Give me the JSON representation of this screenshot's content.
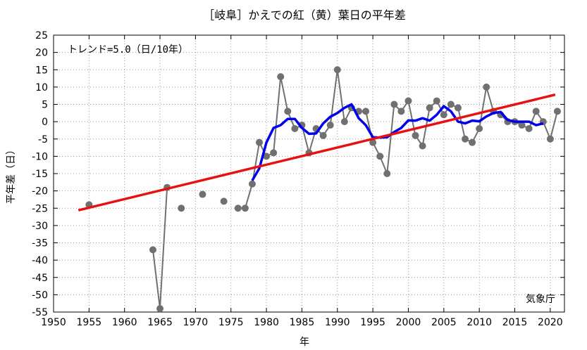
{
  "chart_data": {
    "type": "line",
    "title": "［岐阜］かえでの紅（黄）葉日の平年差",
    "xlabel": "年",
    "ylabel": "平年差（日）",
    "xlim": [
      1950,
      2022
    ],
    "ylim": [
      -55,
      25
    ],
    "xticks": [
      1950,
      1955,
      1960,
      1965,
      1970,
      1975,
      1980,
      1985,
      1990,
      1995,
      2000,
      2005,
      2010,
      2015,
      2020
    ],
    "yticks": [
      25,
      20,
      15,
      10,
      5,
      0,
      -5,
      -10,
      -15,
      -20,
      -25,
      -30,
      -35,
      -40,
      -45,
      -50,
      -55
    ],
    "grid": true,
    "trend_text": "トレンド=5.0（日/10年）",
    "source_text": "気象庁",
    "colors": {
      "observed": "#707070",
      "moving_average": "#0000ee",
      "trend": "#e81010"
    },
    "series": [
      {
        "kind": "observed",
        "x": [
          1955,
          1964,
          1965,
          1966,
          1968,
          1971,
          1974,
          1976,
          1977,
          1978,
          1979,
          1980,
          1981,
          1982,
          1983,
          1984,
          1985,
          1986,
          1987,
          1988,
          1989,
          1990,
          1991,
          1992,
          1993,
          1994,
          1995,
          1996,
          1997,
          1998,
          1999,
          2000,
          2001,
          2002,
          2003,
          2004,
          2005,
          2006,
          2007,
          2008,
          2009,
          2010,
          2011,
          2012,
          2013,
          2014,
          2015,
          2016,
          2017,
          2018,
          2019,
          2020,
          2021
        ],
        "y": [
          -24,
          -37,
          -54,
          -19,
          -25,
          -21,
          -23,
          -25,
          -25,
          -18,
          -6,
          -10,
          -9,
          13,
          3,
          -2,
          -1,
          -9,
          -2,
          -4,
          -1,
          15,
          0,
          4,
          3,
          3,
          -6,
          -10,
          -15,
          5,
          3,
          6,
          -4,
          -7,
          4,
          6,
          2,
          5,
          4,
          -5,
          -6,
          -2,
          10,
          3,
          2,
          0,
          0,
          -1,
          -2,
          3,
          0,
          -5,
          3
        ],
        "segments": [
          [
            1955
          ],
          [
            1964,
            1966
          ],
          [
            1968
          ],
          [
            1971
          ],
          [
            1974
          ],
          [
            1976,
            2021
          ]
        ]
      },
      {
        "kind": "moving_average",
        "x": [
          1978,
          1979,
          1980,
          1981,
          1982,
          1983,
          1984,
          1985,
          1986,
          1987,
          1988,
          1989,
          1990,
          1991,
          1992,
          1993,
          1994,
          1995,
          1996,
          1997,
          1998,
          1999,
          2000,
          2001,
          2002,
          2003,
          2004,
          2005,
          2006,
          2007,
          2008,
          2009,
          2010,
          2011,
          2012,
          2013,
          2014,
          2015,
          2016,
          2017,
          2018,
          2019
        ],
        "y": [
          -17,
          -13.5,
          -6,
          -1.8,
          -1,
          0.8,
          0.8,
          -1.8,
          -3.5,
          -3.4,
          -0.5,
          1.4,
          2.5,
          4,
          5,
          1,
          -1,
          -4.5,
          -4.6,
          -4.5,
          -3,
          -1.8,
          0.4,
          0.3,
          1,
          0.3,
          2,
          4.5,
          3,
          0,
          -0.5,
          0.3,
          0.1,
          1.5,
          2.5,
          2.8,
          0.5,
          0,
          0,
          0,
          -1,
          -0.5
        ]
      },
      {
        "kind": "trend",
        "x": [
          1953.5,
          2020.7
        ],
        "y": [
          -25.6,
          7.8
        ]
      }
    ]
  }
}
